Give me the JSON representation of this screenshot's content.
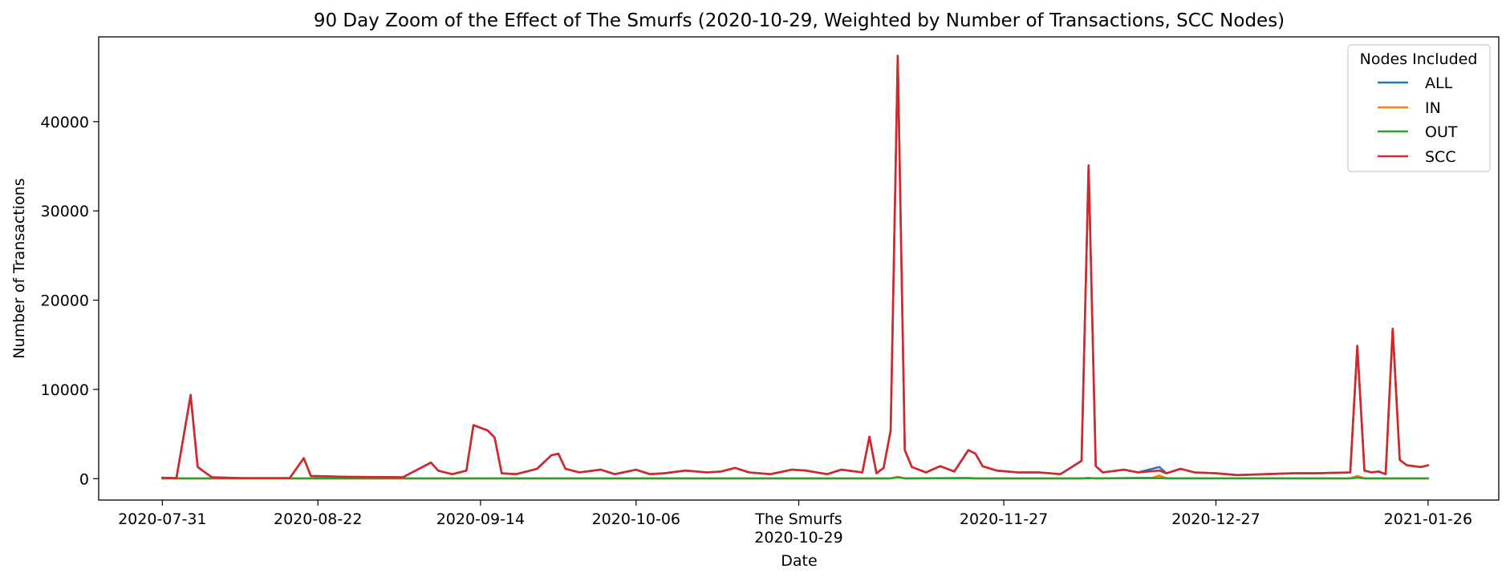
{
  "chart_data": {
    "type": "line",
    "title": "90 Day Zoom of the Effect of The Smurfs (2020-10-29, Weighted by Number of Transactions, SCC Nodes)",
    "xlabel": "Date",
    "ylabel": "Number of Transactions",
    "x_range": [
      "2020-07-22",
      "2021-02-05"
    ],
    "ylim": [
      -2400,
      49500
    ],
    "y_ticks": [
      0,
      10000,
      20000,
      30000,
      40000
    ],
    "x_ticks": [
      "2020-07-31",
      "2020-08-22",
      "2020-09-14",
      "2020-10-06",
      "2020-11-27",
      "2020-12-27",
      "2021-01-26"
    ],
    "event": {
      "date": "2020-10-29",
      "label": "The Smurfs",
      "date_label": "2020-10-29"
    },
    "grid": false,
    "legend": {
      "title": "Nodes Included",
      "position": "top-right"
    },
    "series": [
      {
        "name": "ALL",
        "color": "#1f77b4",
        "points": [
          [
            "2020-07-31",
            100
          ],
          [
            "2020-08-02",
            50
          ],
          [
            "2020-08-04",
            9400
          ],
          [
            "2020-08-05",
            1300
          ],
          [
            "2020-08-07",
            150
          ],
          [
            "2020-08-11",
            50
          ],
          [
            "2020-08-18",
            50
          ],
          [
            "2020-08-20",
            2300
          ],
          [
            "2020-08-21",
            300
          ],
          [
            "2020-08-26",
            200
          ],
          [
            "2020-09-03",
            150
          ],
          [
            "2020-09-07",
            1800
          ],
          [
            "2020-09-08",
            900
          ],
          [
            "2020-09-10",
            500
          ],
          [
            "2020-09-12",
            900
          ],
          [
            "2020-09-13",
            6000
          ],
          [
            "2020-09-15",
            5400
          ],
          [
            "2020-09-16",
            4600
          ],
          [
            "2020-09-17",
            600
          ],
          [
            "2020-09-19",
            500
          ],
          [
            "2020-09-22",
            1100
          ],
          [
            "2020-09-24",
            2600
          ],
          [
            "2020-09-25",
            2800
          ],
          [
            "2020-09-26",
            1100
          ],
          [
            "2020-09-28",
            700
          ],
          [
            "2020-10-01",
            1000
          ],
          [
            "2020-10-03",
            500
          ],
          [
            "2020-10-06",
            1000
          ],
          [
            "2020-10-08",
            500
          ],
          [
            "2020-10-10",
            600
          ],
          [
            "2020-10-13",
            900
          ],
          [
            "2020-10-16",
            700
          ],
          [
            "2020-10-18",
            800
          ],
          [
            "2020-10-20",
            1200
          ],
          [
            "2020-10-22",
            700
          ],
          [
            "2020-10-25",
            500
          ],
          [
            "2020-10-28",
            1000
          ],
          [
            "2020-10-30",
            900
          ],
          [
            "2020-11-02",
            500
          ],
          [
            "2020-11-04",
            1000
          ],
          [
            "2020-11-07",
            700
          ],
          [
            "2020-11-08",
            4700
          ],
          [
            "2020-11-09",
            600
          ],
          [
            "2020-11-10",
            1200
          ],
          [
            "2020-11-11",
            5400
          ],
          [
            "2020-11-12",
            47400
          ],
          [
            "2020-11-13",
            3200
          ],
          [
            "2020-11-14",
            1300
          ],
          [
            "2020-11-16",
            700
          ],
          [
            "2020-11-18",
            1400
          ],
          [
            "2020-11-20",
            800
          ],
          [
            "2020-11-22",
            3200
          ],
          [
            "2020-11-23",
            2800
          ],
          [
            "2020-11-24",
            1400
          ],
          [
            "2020-11-26",
            900
          ],
          [
            "2020-11-29",
            700
          ],
          [
            "2020-12-02",
            700
          ],
          [
            "2020-12-05",
            500
          ],
          [
            "2020-12-07",
            1500
          ],
          [
            "2020-12-08",
            2000
          ],
          [
            "2020-12-09",
            35100
          ],
          [
            "2020-12-10",
            1400
          ],
          [
            "2020-12-11",
            700
          ],
          [
            "2020-12-14",
            1000
          ],
          [
            "2020-12-16",
            700
          ],
          [
            "2020-12-19",
            1300
          ],
          [
            "2020-12-20",
            600
          ],
          [
            "2020-12-22",
            1100
          ],
          [
            "2020-12-24",
            700
          ],
          [
            "2020-12-27",
            600
          ],
          [
            "2020-12-30",
            400
          ],
          [
            "2021-01-03",
            500
          ],
          [
            "2021-01-07",
            600
          ],
          [
            "2021-01-10",
            600
          ],
          [
            "2021-01-15",
            700
          ],
          [
            "2021-01-16",
            14900
          ],
          [
            "2021-01-17",
            900
          ],
          [
            "2021-01-18",
            700
          ],
          [
            "2021-01-19",
            800
          ],
          [
            "2021-01-20",
            500
          ],
          [
            "2021-01-21",
            16800
          ],
          [
            "2021-01-22",
            2100
          ],
          [
            "2021-01-23",
            1500
          ],
          [
            "2021-01-25",
            1300
          ],
          [
            "2021-01-26",
            1500
          ]
        ]
      },
      {
        "name": "IN",
        "color": "#ff7f0e",
        "points": [
          [
            "2020-07-31",
            30
          ],
          [
            "2020-08-30",
            30
          ],
          [
            "2020-09-29",
            30
          ],
          [
            "2020-10-29",
            30
          ],
          [
            "2020-11-11",
            30
          ],
          [
            "2020-11-12",
            200
          ],
          [
            "2020-11-13",
            30
          ],
          [
            "2020-12-09",
            30
          ],
          [
            "2020-12-18",
            100
          ],
          [
            "2020-12-19",
            350
          ],
          [
            "2020-12-20",
            50
          ],
          [
            "2021-01-15",
            30
          ],
          [
            "2021-01-16",
            300
          ],
          [
            "2021-01-17",
            30
          ],
          [
            "2021-01-26",
            30
          ]
        ]
      },
      {
        "name": "OUT",
        "color": "#2ca02c",
        "points": [
          [
            "2020-07-31",
            20
          ],
          [
            "2020-08-30",
            20
          ],
          [
            "2020-09-29",
            20
          ],
          [
            "2020-10-29",
            20
          ],
          [
            "2020-11-11",
            20
          ],
          [
            "2020-11-12",
            150
          ],
          [
            "2020-11-13",
            20
          ],
          [
            "2020-11-22",
            80
          ],
          [
            "2020-11-23",
            20
          ],
          [
            "2020-12-08",
            20
          ],
          [
            "2020-12-09",
            80
          ],
          [
            "2020-12-10",
            20
          ],
          [
            "2020-12-19",
            60
          ],
          [
            "2020-12-20",
            20
          ],
          [
            "2021-01-15",
            20
          ],
          [
            "2021-01-16",
            120
          ],
          [
            "2021-01-17",
            20
          ],
          [
            "2021-01-26",
            20
          ]
        ]
      },
      {
        "name": "SCC",
        "color": "#d62728",
        "points": [
          [
            "2020-07-31",
            100
          ],
          [
            "2020-08-02",
            50
          ],
          [
            "2020-08-04",
            9300
          ],
          [
            "2020-08-05",
            1300
          ],
          [
            "2020-08-07",
            150
          ],
          [
            "2020-08-11",
            50
          ],
          [
            "2020-08-18",
            50
          ],
          [
            "2020-08-20",
            2300
          ],
          [
            "2020-08-21",
            300
          ],
          [
            "2020-08-26",
            200
          ],
          [
            "2020-09-03",
            150
          ],
          [
            "2020-09-07",
            1800
          ],
          [
            "2020-09-08",
            900
          ],
          [
            "2020-09-10",
            500
          ],
          [
            "2020-09-12",
            900
          ],
          [
            "2020-09-13",
            6000
          ],
          [
            "2020-09-15",
            5400
          ],
          [
            "2020-09-16",
            4600
          ],
          [
            "2020-09-17",
            600
          ],
          [
            "2020-09-19",
            500
          ],
          [
            "2020-09-22",
            1100
          ],
          [
            "2020-09-24",
            2600
          ],
          [
            "2020-09-25",
            2800
          ],
          [
            "2020-09-26",
            1100
          ],
          [
            "2020-09-28",
            700
          ],
          [
            "2020-10-01",
            1000
          ],
          [
            "2020-10-03",
            500
          ],
          [
            "2020-10-06",
            1000
          ],
          [
            "2020-10-08",
            500
          ],
          [
            "2020-10-10",
            600
          ],
          [
            "2020-10-13",
            900
          ],
          [
            "2020-10-16",
            700
          ],
          [
            "2020-10-18",
            800
          ],
          [
            "2020-10-20",
            1200
          ],
          [
            "2020-10-22",
            700
          ],
          [
            "2020-10-25",
            500
          ],
          [
            "2020-10-28",
            1000
          ],
          [
            "2020-10-30",
            900
          ],
          [
            "2020-11-02",
            500
          ],
          [
            "2020-11-04",
            1000
          ],
          [
            "2020-11-07",
            700
          ],
          [
            "2020-11-08",
            4700
          ],
          [
            "2020-11-09",
            600
          ],
          [
            "2020-11-10",
            1200
          ],
          [
            "2020-11-11",
            5400
          ],
          [
            "2020-11-12",
            47300
          ],
          [
            "2020-11-13",
            3200
          ],
          [
            "2020-11-14",
            1300
          ],
          [
            "2020-11-16",
            700
          ],
          [
            "2020-11-18",
            1400
          ],
          [
            "2020-11-20",
            800
          ],
          [
            "2020-11-22",
            3200
          ],
          [
            "2020-11-23",
            2800
          ],
          [
            "2020-11-24",
            1400
          ],
          [
            "2020-11-26",
            900
          ],
          [
            "2020-11-29",
            700
          ],
          [
            "2020-12-02",
            700
          ],
          [
            "2020-12-05",
            500
          ],
          [
            "2020-12-07",
            1500
          ],
          [
            "2020-12-08",
            2000
          ],
          [
            "2020-12-09",
            35100
          ],
          [
            "2020-12-10",
            1400
          ],
          [
            "2020-12-11",
            700
          ],
          [
            "2020-12-14",
            1000
          ],
          [
            "2020-12-16",
            700
          ],
          [
            "2020-12-19",
            900
          ],
          [
            "2020-12-20",
            600
          ],
          [
            "2020-12-22",
            1100
          ],
          [
            "2020-12-24",
            700
          ],
          [
            "2020-12-27",
            600
          ],
          [
            "2020-12-30",
            400
          ],
          [
            "2021-01-03",
            500
          ],
          [
            "2021-01-07",
            600
          ],
          [
            "2021-01-10",
            600
          ],
          [
            "2021-01-15",
            700
          ],
          [
            "2021-01-16",
            14800
          ],
          [
            "2021-01-17",
            900
          ],
          [
            "2021-01-18",
            700
          ],
          [
            "2021-01-19",
            800
          ],
          [
            "2021-01-20",
            500
          ],
          [
            "2021-01-21",
            16800
          ],
          [
            "2021-01-22",
            2100
          ],
          [
            "2021-01-23",
            1500
          ],
          [
            "2021-01-25",
            1300
          ],
          [
            "2021-01-26",
            1500
          ]
        ]
      }
    ]
  }
}
